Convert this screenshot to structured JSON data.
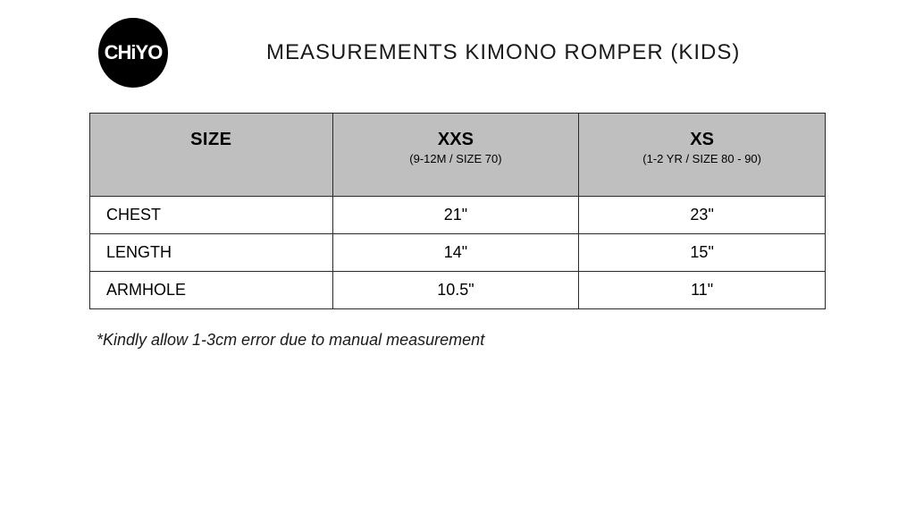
{
  "logo_text": "CHiYO",
  "title": "MEASUREMENTS KIMONO ROMPER (KIDS)",
  "table": {
    "size_header": "SIZE",
    "columns": [
      {
        "label": "XXS",
        "sub": "(9-12M / SIZE 70)"
      },
      {
        "label": "XS",
        "sub": "(1-2 YR / SIZE 80 - 90)"
      }
    ],
    "rows": [
      {
        "label": "CHEST",
        "values": [
          "21\"",
          "23\""
        ]
      },
      {
        "label": "LENGTH",
        "values": [
          "14\"",
          "15\""
        ]
      },
      {
        "label": "ARMHOLE",
        "values": [
          "10.5\"",
          "11\""
        ]
      }
    ],
    "header_bg": "#bfbfbf",
    "border_color": "#2a2a2a"
  },
  "footnote": "*Kindly allow 1-3cm error due to manual measurement"
}
